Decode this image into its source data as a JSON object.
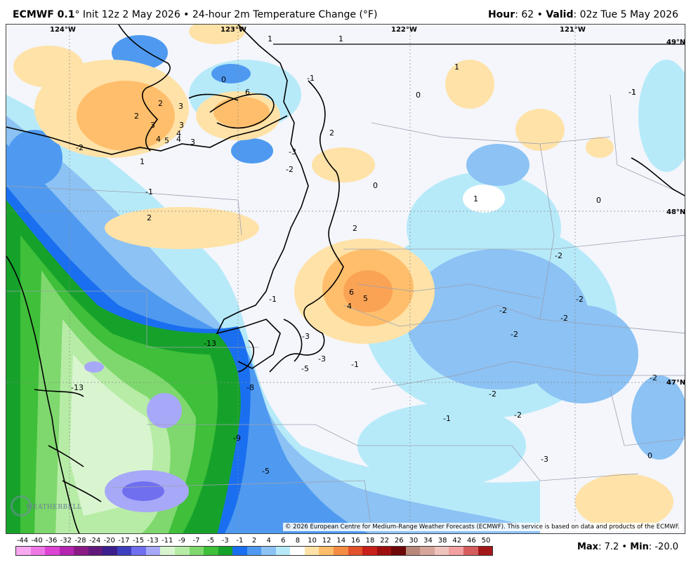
{
  "header": {
    "model": "ECMWF 0.1",
    "degree": "°",
    "init": " Init 12z 2 May 2026 • 24-hour 2m Temperature Change (°F)",
    "hour_label": "Hour",
    "hour_value": ": 62 • ",
    "valid_label": "Valid",
    "valid_value": ": 02z Tue 5 May 2026"
  },
  "map": {
    "lon_labels": [
      "124°W",
      "123°W",
      "122°W",
      "121°W"
    ],
    "lat_labels": [
      "49°N",
      "48°N",
      "47°N"
    ],
    "value_labels": [
      "1",
      "1",
      "1",
      "0",
      "-1",
      "6",
      "-1",
      "0",
      "2",
      "2",
      "3",
      "3",
      "3",
      "4",
      "5",
      "4",
      "4",
      "3",
      "-2",
      "1",
      "2",
      "-3",
      "-2",
      "0",
      "-1",
      "1",
      "0",
      "2",
      "-1",
      "2",
      "6",
      "5",
      "4",
      "-2",
      "-2",
      "-2",
      "-2",
      "-2",
      "-13",
      "-3",
      "-5",
      "-3",
      "-1",
      "-13",
      "-8",
      "-2",
      "-2",
      "-1",
      "-9",
      "-1",
      "-3",
      "-5",
      "0",
      "-2"
    ],
    "credit": "© 2026 European Centre for Medium-Range Weather Forecasts (ECMWF). This service is based on data and products of the ECMWF.",
    "logo_text": "WEATHERBELL"
  },
  "colorbar": {
    "labels": [
      "-44",
      "-40",
      "-36",
      "-32",
      "-28",
      "-24",
      "-20",
      "-17",
      "-15",
      "-13",
      "-11",
      "-9",
      "-7",
      "-5",
      "-3",
      "-1",
      "2",
      "4",
      "6",
      "8",
      "10",
      "12",
      "14",
      "16",
      "18",
      "22",
      "26",
      "30",
      "34",
      "38",
      "42",
      "46",
      "50"
    ],
    "colors": [
      "#f7a8f0",
      "#ee77e6",
      "#dd44d4",
      "#b525b0",
      "#8a1b85",
      "#611a7b",
      "#3b1f8c",
      "#3e3fbf",
      "#6f6ff0",
      "#a8a8f8",
      "#d9f5d0",
      "#b7eca6",
      "#7fd86d",
      "#3fbf3a",
      "#16a22a",
      "#1a6ff0",
      "#4f9af0",
      "#8cc2f4",
      "#b7eaf9",
      "#ffffff",
      "#ffe2a8",
      "#ffbe6b",
      "#f58c43",
      "#e3512b",
      "#c8201a",
      "#9d0f0f",
      "#6d0808",
      "#b8887a",
      "#d7a69a",
      "#efc4bd",
      "#f2a0a0",
      "#d65d5d",
      "#a31818"
    ]
  },
  "footer": {
    "max_label": "Max",
    "max_value": ": 7.2 • ",
    "min_label": "Min",
    "min_value": ": -20.0"
  }
}
